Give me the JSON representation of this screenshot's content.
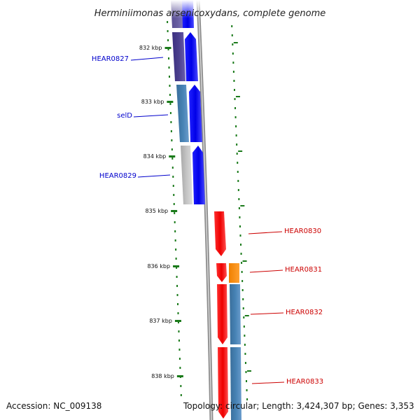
{
  "title": "Herminiimonas arsenicoxydans, complete genome",
  "accession": "Accession: NC_009138",
  "summary": "Topology: circular; Length: 3,424,307 bp; Genes: 3,353",
  "colors": {
    "backbone": "#8c8c8c",
    "ticks": "#1a7a1a",
    "forward_label": "#0000cc",
    "reverse_label": "#cc0000",
    "blue_gene": "#0000f0",
    "red_gene": "#f00000",
    "orange_gene": "#ff8c00",
    "steel_gene": "#4682b4",
    "slate_gene": "#4b3f8e",
    "gray_gene": "#c0c0c0"
  },
  "ticks": [
    {
      "label": "832 kbp"
    },
    {
      "label": "833 kbp"
    },
    {
      "label": "834 kbp"
    },
    {
      "label": "835 kbp"
    },
    {
      "label": "836 kbp"
    },
    {
      "label": "837 kbp"
    },
    {
      "label": "838 kbp"
    }
  ],
  "gene_labels": [
    {
      "text": "HEAR0827",
      "strand": "forward"
    },
    {
      "text": "selD",
      "strand": "forward"
    },
    {
      "text": "HEAR0829",
      "strand": "forward"
    },
    {
      "text": "HEAR0830",
      "strand": "reverse"
    },
    {
      "text": "HEAR0831",
      "strand": "reverse"
    },
    {
      "text": "HEAR0832",
      "strand": "reverse"
    },
    {
      "text": "HEAR0833",
      "strand": "reverse"
    }
  ]
}
